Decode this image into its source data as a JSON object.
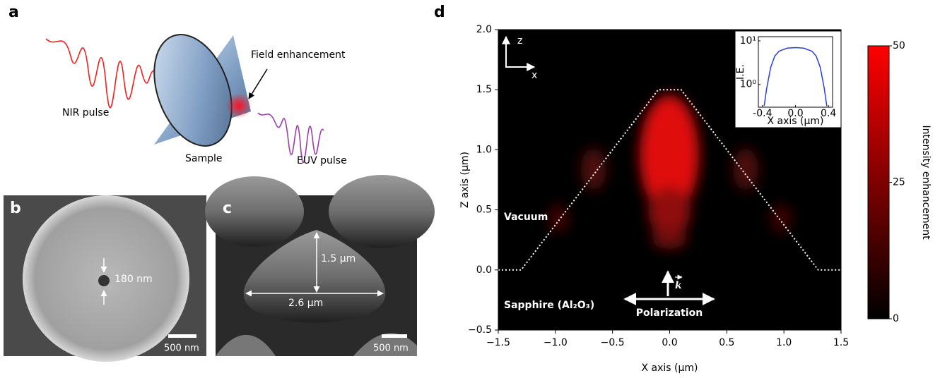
{
  "panels": {
    "a": {
      "label": "a",
      "nir": "NIR pulse",
      "sample": "Sample",
      "field": "Field enhancement",
      "euv": "EUV pulse"
    },
    "b": {
      "label": "b",
      "dimension": "180 nm",
      "scale": "500 nm"
    },
    "c": {
      "label": "c",
      "height": "1.5 μm",
      "width": "2.6 μm",
      "scale": "500 nm"
    },
    "d": {
      "label": "d"
    }
  },
  "chart_data": {
    "type": "heatmap",
    "xlabel": "X axis (μm)",
    "ylabel": "Z axis (μm)",
    "xlim": [
      -1.5,
      1.5
    ],
    "ylim": [
      -0.5,
      2.0
    ],
    "xticks": [
      {
        "value": -1.5,
        "label": "−1.5"
      },
      {
        "value": -1.0,
        "label": "−1.0"
      },
      {
        "value": -0.5,
        "label": "−0.5"
      },
      {
        "value": 0,
        "label": "0.0"
      },
      0.5,
      {
        "value": 1.0,
        "label": "1.0"
      },
      1.5
    ],
    "yticks": [
      {
        "value": -0.5,
        "label": "−0.5"
      },
      {
        "value": 0,
        "label": "0.0"
      },
      0.5,
      {
        "value": 1.0,
        "label": "1.0"
      },
      1.5,
      {
        "value": 2.0,
        "label": "2.0"
      }
    ],
    "outline": {
      "x": [
        -1.5,
        -1.3,
        -0.1,
        0.1,
        1.3,
        1.5
      ],
      "values": [
        0,
        0,
        1.5,
        1.5,
        0,
        0
      ],
      "color": "#ffffff"
    },
    "axes_icon": {
      "z": "z",
      "x": "x"
    },
    "annotations": {
      "vacuum": "Vacuum",
      "sapphire": "Sapphire (Al₂O₃)",
      "k": "k",
      "polarization": "Polarization"
    },
    "colorbar": {
      "label": "Intensity enhancement",
      "lim": [
        0,
        50
      ],
      "ticks": [
        0,
        25,
        50
      ],
      "colors": [
        "#000000",
        "#ff0000"
      ]
    },
    "inset": {
      "type": "line",
      "ylabel": "I.E.",
      "xlabel": "X axis (μm)",
      "log_y": true,
      "color": "#2b3fd6",
      "xlim": [
        -0.45,
        0.45
      ],
      "ylim": [
        0.3,
        12.5
      ],
      "xticks": [
        {
          "value": -0.4,
          "label": "-0.4"
        },
        {
          "value": 0,
          "label": "0.0"
        },
        0.4
      ],
      "yticks": [
        {
          "value": 1,
          "label": "10⁰"
        },
        {
          "value": 10,
          "label": "10¹"
        }
      ],
      "x": [
        -0.38,
        -0.35,
        -0.3,
        -0.25,
        -0.2,
        -0.1,
        0,
        0.1,
        0.2,
        0.25,
        0.3,
        0.35,
        0.38
      ],
      "values": [
        0.32,
        0.8,
        2.5,
        4.5,
        5.8,
        6.8,
        7,
        6.8,
        5.8,
        4.5,
        2.5,
        0.8,
        0.32
      ]
    }
  }
}
